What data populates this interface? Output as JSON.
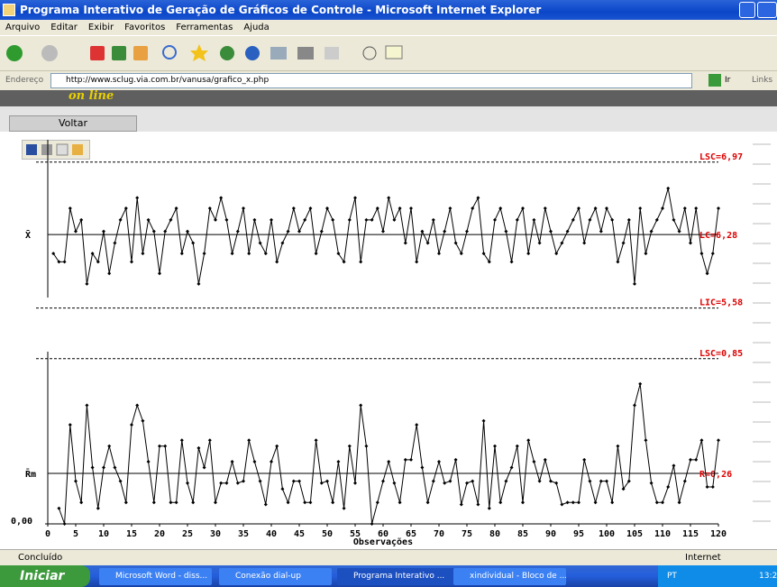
{
  "window": {
    "title": "Programa Interativo de Geração de Gráficos de Controle - Microsoft Internet Explorer",
    "menu": [
      "Arquivo",
      "Editar",
      "Exibir",
      "Favoritos",
      "Ferramentas",
      "Ajuda"
    ],
    "address_label": "Endereço",
    "url": "http://www.sclug.via.com.br/vanusa/grafico_x.php",
    "go": "Ir",
    "links": "Links",
    "status": "Concluído",
    "zone": "Internet"
  },
  "page": {
    "banner": "on line",
    "nav": "Voltar"
  },
  "taskbar": {
    "start": "Iniciar",
    "tasks": [
      "Microsoft Word - diss...",
      "Conexão dial-up",
      "Programa Interativo ...",
      "xindividual - Bloco de ..."
    ],
    "lang": "PT",
    "clock": "13:2"
  },
  "chart_data": [
    {
      "type": "line",
      "ylabel": "X̄",
      "color": "#000000",
      "x": [
        1,
        2,
        3,
        4,
        5,
        6,
        7,
        8,
        9,
        10,
        11,
        12,
        13,
        14,
        15,
        16,
        17,
        18,
        19,
        20,
        21,
        22,
        23,
        24,
        25,
        26,
        27,
        28,
        29,
        30,
        31,
        32,
        33,
        34,
        35,
        36,
        37,
        38,
        39,
        40,
        41,
        42,
        43,
        44,
        45,
        46,
        47,
        48,
        49,
        50,
        51,
        52,
        53,
        54,
        55,
        56,
        57,
        58,
        59,
        60,
        61,
        62,
        63,
        64,
        65,
        66,
        67,
        68,
        69,
        70,
        71,
        72,
        73,
        74,
        75,
        76,
        77,
        78,
        79,
        80,
        81,
        82,
        83,
        84,
        85,
        86,
        87,
        88,
        89,
        90,
        91,
        92,
        93,
        94,
        95,
        96,
        97,
        98,
        99,
        100,
        101,
        102,
        103,
        104,
        105,
        106,
        107,
        108,
        109,
        110,
        111,
        112,
        113,
        114,
        115,
        116,
        117,
        118,
        119,
        120
      ],
      "values": [
        6.1,
        6.02,
        6.02,
        6.53,
        6.31,
        6.42,
        5.81,
        6.1,
        6.02,
        6.31,
        5.91,
        6.2,
        6.42,
        6.53,
        6.02,
        6.63,
        6.1,
        6.42,
        6.31,
        5.91,
        6.31,
        6.42,
        6.53,
        6.1,
        6.31,
        6.2,
        5.81,
        6.1,
        6.53,
        6.42,
        6.63,
        6.42,
        6.1,
        6.31,
        6.53,
        6.1,
        6.42,
        6.2,
        6.1,
        6.42,
        6.02,
        6.2,
        6.31,
        6.53,
        6.31,
        6.42,
        6.53,
        6.1,
        6.31,
        6.53,
        6.42,
        6.1,
        6.02,
        6.42,
        6.63,
        6.02,
        6.42,
        6.42,
        6.53,
        6.31,
        6.63,
        6.42,
        6.53,
        6.2,
        6.53,
        6.02,
        6.31,
        6.2,
        6.42,
        6.1,
        6.31,
        6.53,
        6.2,
        6.1,
        6.31,
        6.53,
        6.63,
        6.1,
        6.02,
        6.42,
        6.53,
        6.31,
        6.02,
        6.42,
        6.53,
        6.1,
        6.42,
        6.2,
        6.53,
        6.31,
        6.1,
        6.2,
        6.31,
        6.42,
        6.53,
        6.2,
        6.42,
        6.53,
        6.31,
        6.53,
        6.42,
        6.02,
        6.2,
        6.42,
        5.81,
        6.53,
        6.1,
        6.31,
        6.42,
        6.53,
        6.72,
        6.42,
        6.31,
        6.53,
        6.2,
        6.53,
        6.1,
        5.91,
        6.1,
        6.53
      ],
      "xlim": [
        0,
        120
      ],
      "ylim": [
        5.5,
        7.2
      ],
      "limits": [
        {
          "value": 6.97,
          "label": "LSC=6,97",
          "style": "dashed"
        },
        {
          "value": 6.28,
          "label": "LC=6,28",
          "style": "solid"
        },
        {
          "value": 5.58,
          "label": "LIC=5,58",
          "style": "dashed"
        }
      ]
    },
    {
      "type": "line",
      "ylabel": "R̄m",
      "xlabel": "Observações",
      "color": "#000000",
      "x": [
        2,
        3,
        4,
        5,
        6,
        7,
        8,
        9,
        10,
        11,
        12,
        13,
        14,
        15,
        16,
        17,
        18,
        19,
        20,
        21,
        22,
        23,
        24,
        25,
        26,
        27,
        28,
        29,
        30,
        31,
        32,
        33,
        34,
        35,
        36,
        37,
        38,
        39,
        40,
        41,
        42,
        43,
        44,
        45,
        46,
        47,
        48,
        49,
        50,
        51,
        52,
        53,
        54,
        55,
        56,
        57,
        58,
        59,
        60,
        61,
        62,
        63,
        64,
        65,
        66,
        67,
        68,
        69,
        70,
        71,
        72,
        73,
        74,
        75,
        76,
        77,
        78,
        79,
        80,
        81,
        82,
        83,
        84,
        85,
        86,
        87,
        88,
        89,
        90,
        91,
        92,
        93,
        94,
        95,
        96,
        97,
        98,
        99,
        100,
        101,
        102,
        103,
        104,
        105,
        106,
        107,
        108,
        109,
        110,
        111,
        112,
        113,
        114,
        115,
        116,
        117,
        118,
        119,
        120
      ],
      "values": [
        0.08,
        0,
        0.51,
        0.22,
        0.11,
        0.61,
        0.29,
        0.08,
        0.29,
        0.4,
        0.29,
        0.22,
        0.11,
        0.51,
        0.61,
        0.53,
        0.32,
        0.11,
        0.4,
        0.4,
        0.11,
        0.11,
        0.43,
        0.21,
        0.11,
        0.39,
        0.29,
        0.43,
        0.11,
        0.21,
        0.21,
        0.32,
        0.21,
        0.22,
        0.43,
        0.32,
        0.22,
        0.1,
        0.32,
        0.4,
        0.18,
        0.11,
        0.22,
        0.22,
        0.11,
        0.11,
        0.43,
        0.21,
        0.22,
        0.11,
        0.32,
        0.08,
        0.4,
        0.21,
        0.61,
        0.4,
        0,
        0.11,
        0.22,
        0.32,
        0.21,
        0.11,
        0.33,
        0.33,
        0.51,
        0.29,
        0.11,
        0.22,
        0.32,
        0.21,
        0.22,
        0.33,
        0.1,
        0.21,
        0.22,
        0.1,
        0.53,
        0.08,
        0.4,
        0.11,
        0.22,
        0.29,
        0.4,
        0.11,
        0.43,
        0.32,
        0.22,
        0.33,
        0.22,
        0.21,
        0.1,
        0.11,
        0.11,
        0.11,
        0.33,
        0.22,
        0.11,
        0.22,
        0.22,
        0.11,
        0.4,
        0.18,
        0.22,
        0.61,
        0.72,
        0.43,
        0.21,
        0.11,
        0.11,
        0.19,
        0.3,
        0.11,
        0.22,
        0.33,
        0.33,
        0.43,
        0.19,
        0.19,
        0.43
      ],
      "xlim": [
        0,
        120
      ],
      "ylim": [
        0,
        0.9
      ],
      "xticks": [
        0,
        5,
        10,
        15,
        20,
        25,
        30,
        35,
        40,
        45,
        50,
        55,
        60,
        65,
        70,
        75,
        80,
        85,
        90,
        95,
        100,
        105,
        110,
        115,
        120
      ],
      "yticks": [
        {
          "value": 0,
          "label": "0,00"
        }
      ],
      "limits": [
        {
          "value": 0.85,
          "label": "LSC=0,85",
          "style": "dashed"
        },
        {
          "value": 0.26,
          "label": "R=0,26",
          "style": "solid"
        }
      ]
    }
  ]
}
